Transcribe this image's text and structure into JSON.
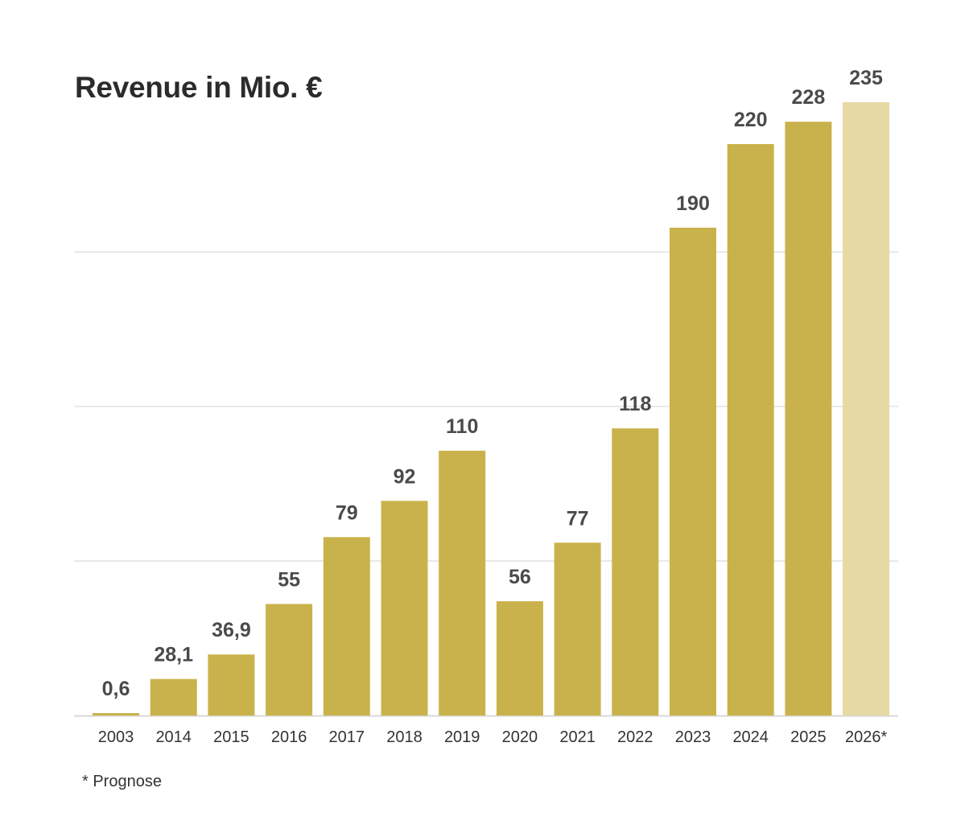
{
  "chart_data": {
    "type": "bar",
    "title": "Revenue in Mio. €",
    "categories": [
      "2003",
      "2014",
      "2015",
      "2016",
      "2017",
      "2018",
      "2019",
      "2020",
      "2021",
      "2022",
      "2023",
      "2024",
      "2025",
      "2026*"
    ],
    "values": [
      0.6,
      28.1,
      36.9,
      55,
      79,
      92,
      110,
      56,
      77,
      118,
      190,
      220,
      228,
      235
    ],
    "value_labels": [
      "0,6",
      "28,1",
      "36,9",
      "55",
      "79",
      "92",
      "110",
      "56",
      "77",
      "118",
      "190",
      "220",
      "228",
      "235"
    ],
    "forecast_flags": [
      false,
      false,
      false,
      false,
      false,
      false,
      false,
      false,
      false,
      false,
      false,
      false,
      false,
      true
    ],
    "xlabel": "",
    "ylabel": "",
    "ylim": [
      15,
      235
    ],
    "grid": true,
    "footnote": "* Prognose",
    "colors": {
      "bar": "#c9b24b",
      "forecast_bar": "#e6d9a4",
      "grid": "#e2e2e2",
      "baseline": "#d8d8d8"
    }
  }
}
